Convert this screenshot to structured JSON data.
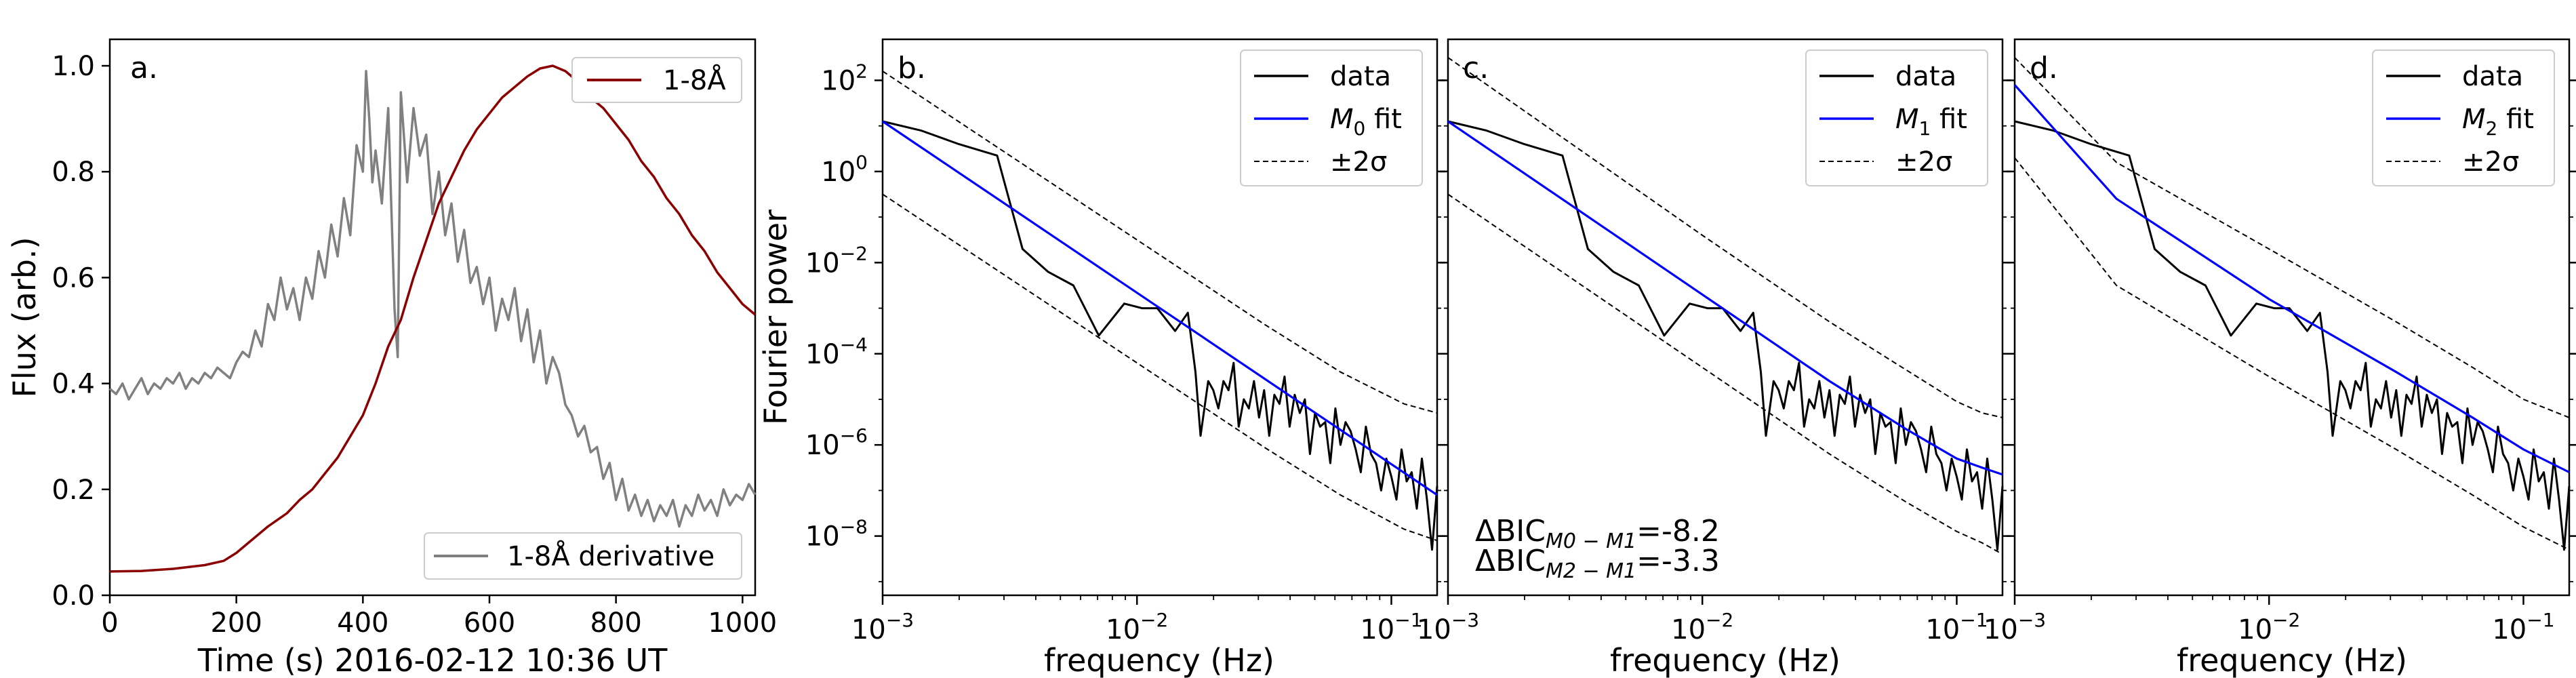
{
  "chart_data": [
    {
      "panel": "a.",
      "type": "line",
      "xlabel": "Time (s) 2016-02-12 10:36 UT",
      "ylabel": "Flux (arb.)",
      "xlim": [
        0,
        1020
      ],
      "ylim": [
        0,
        1.05
      ],
      "xticks": [
        0,
        200,
        400,
        600,
        800,
        1000
      ],
      "yticks": [
        0.0,
        0.2,
        0.4,
        0.6,
        0.8,
        1.0
      ],
      "xtick_labels": [
        "0",
        "200",
        "400",
        "600",
        "800",
        "1000"
      ],
      "ytick_labels": [
        "0.0",
        "0.2",
        "0.4",
        "0.6",
        "0.8",
        "1.0"
      ],
      "series": [
        {
          "name": "1-8Å",
          "color": "#8b0000",
          "legend": "top-right",
          "x": [
            0,
            50,
            100,
            150,
            180,
            200,
            220,
            250,
            280,
            300,
            320,
            340,
            360,
            380,
            400,
            420,
            440,
            460,
            480,
            500,
            520,
            540,
            560,
            580,
            600,
            620,
            640,
            660,
            680,
            700,
            720,
            740,
            760,
            780,
            800,
            820,
            840,
            860,
            880,
            900,
            920,
            940,
            960,
            980,
            1000,
            1020
          ],
          "y": [
            0.045,
            0.046,
            0.05,
            0.057,
            0.065,
            0.08,
            0.1,
            0.13,
            0.155,
            0.18,
            0.2,
            0.23,
            0.26,
            0.3,
            0.34,
            0.4,
            0.47,
            0.52,
            0.6,
            0.67,
            0.74,
            0.79,
            0.84,
            0.88,
            0.91,
            0.94,
            0.96,
            0.98,
            0.995,
            1.0,
            0.99,
            0.97,
            0.94,
            0.92,
            0.89,
            0.86,
            0.82,
            0.79,
            0.75,
            0.72,
            0.68,
            0.65,
            0.61,
            0.58,
            0.55,
            0.53
          ]
        },
        {
          "name": "1-8Å derivative",
          "color": "#808080",
          "legend": "bottom-right",
          "x": [
            0,
            10,
            20,
            30,
            40,
            50,
            60,
            70,
            80,
            90,
            100,
            110,
            120,
            130,
            140,
            150,
            160,
            170,
            180,
            190,
            200,
            210,
            220,
            230,
            240,
            250,
            260,
            270,
            280,
            290,
            300,
            310,
            320,
            330,
            340,
            350,
            360,
            370,
            380,
            390,
            400,
            405,
            410,
            415,
            420,
            430,
            440,
            450,
            455,
            460,
            470,
            480,
            490,
            500,
            510,
            520,
            530,
            540,
            550,
            560,
            570,
            580,
            590,
            600,
            610,
            620,
            630,
            640,
            650,
            660,
            670,
            680,
            690,
            700,
            710,
            720,
            730,
            740,
            750,
            760,
            770,
            780,
            790,
            800,
            810,
            820,
            830,
            840,
            850,
            860,
            870,
            880,
            890,
            900,
            910,
            920,
            930,
            940,
            950,
            960,
            970,
            980,
            990,
            1000,
            1010,
            1020
          ],
          "y": [
            0.39,
            0.38,
            0.4,
            0.37,
            0.39,
            0.41,
            0.38,
            0.4,
            0.39,
            0.41,
            0.4,
            0.42,
            0.39,
            0.41,
            0.4,
            0.42,
            0.41,
            0.43,
            0.42,
            0.41,
            0.44,
            0.46,
            0.45,
            0.5,
            0.47,
            0.55,
            0.52,
            0.6,
            0.54,
            0.58,
            0.52,
            0.6,
            0.56,
            0.65,
            0.6,
            0.7,
            0.64,
            0.75,
            0.68,
            0.85,
            0.8,
            0.99,
            0.9,
            0.78,
            0.84,
            0.74,
            0.92,
            0.54,
            0.45,
            0.95,
            0.78,
            0.92,
            0.83,
            0.87,
            0.72,
            0.8,
            0.68,
            0.74,
            0.63,
            0.69,
            0.59,
            0.62,
            0.55,
            0.6,
            0.5,
            0.56,
            0.52,
            0.58,
            0.48,
            0.54,
            0.44,
            0.5,
            0.4,
            0.45,
            0.42,
            0.36,
            0.34,
            0.3,
            0.32,
            0.27,
            0.28,
            0.22,
            0.25,
            0.18,
            0.22,
            0.16,
            0.19,
            0.15,
            0.18,
            0.14,
            0.17,
            0.15,
            0.18,
            0.13,
            0.17,
            0.15,
            0.19,
            0.16,
            0.18,
            0.15,
            0.2,
            0.17,
            0.19,
            0.18,
            0.21,
            0.19
          ]
        }
      ]
    },
    {
      "panel": "b.",
      "type": "line",
      "xscale": "log",
      "yscale": "log",
      "xlabel": "frequency (Hz)",
      "ylabel": "Fourier power",
      "xlim_log10": [
        -3.0,
        -0.82
      ],
      "ylim_log10": [
        -9.3,
        2.9
      ],
      "xtick_labels": [
        "10^-3",
        "10^-2",
        "10^-1"
      ],
      "ytick_labels": [
        "10^2",
        "10^0",
        "10^-2",
        "10^-4",
        "10^-6",
        "10^-8"
      ],
      "legend": [
        "data",
        "M0 fit",
        "±2σ"
      ],
      "series": [
        {
          "name": "data",
          "color": "#000000"
        },
        {
          "name": "M0 fit",
          "color": "#0000ff",
          "log10_x": [
            -3.0,
            -0.82
          ],
          "log10_y": [
            1.1,
            -7.1
          ]
        },
        {
          "name": "±2σ upper",
          "color": "#000000",
          "style": "dashed",
          "log10_x": [
            -3.0,
            -1.5,
            -1.2,
            -0.95,
            -0.82
          ],
          "log10_y": [
            2.2,
            -3.35,
            -4.4,
            -5.1,
            -5.3
          ]
        },
        {
          "name": "±2σ lower",
          "color": "#000000",
          "style": "dashed",
          "log10_x": [
            -3.0,
            -1.5,
            -1.2,
            -0.95,
            -0.82
          ],
          "log10_y": [
            -0.5,
            -6.05,
            -7.1,
            -7.85,
            -8.1
          ]
        }
      ]
    },
    {
      "panel": "c.",
      "type": "line",
      "xscale": "log",
      "yscale": "log",
      "xlabel": "frequency (Hz)",
      "xlim_log10": [
        -3.0,
        -0.82
      ],
      "ylim_log10": [
        -9.3,
        2.9
      ],
      "xtick_labels": [
        "10^-3",
        "10^-2",
        "10^-1"
      ],
      "legend": [
        "data",
        "M1 fit",
        "±2σ"
      ],
      "annotations": [
        "ΔBIC_{M0−M1}=-8.2",
        "ΔBIC_{M2−M1}=-3.3"
      ],
      "series": [
        {
          "name": "data",
          "color": "#000000"
        },
        {
          "name": "M1 fit",
          "color": "#0000ff",
          "log10_x": [
            -3.0,
            -2.0,
            -1.5,
            -1.2,
            -1.0,
            -0.9,
            -0.82
          ],
          "log10_y": [
            1.1,
            -2.7,
            -4.6,
            -5.65,
            -6.3,
            -6.5,
            -6.65
          ]
        },
        {
          "name": "±2σ upper",
          "color": "#000000",
          "style": "dashed",
          "log10_x": [
            -3.0,
            -2.0,
            -1.5,
            -1.2,
            -1.0,
            -0.9,
            -0.82
          ],
          "log10_y": [
            2.5,
            -1.4,
            -3.3,
            -4.35,
            -5.05,
            -5.3,
            -5.4
          ]
        },
        {
          "name": "±2σ lower",
          "color": "#000000",
          "style": "dashed",
          "log10_x": [
            -3.0,
            -2.0,
            -1.5,
            -1.2,
            -1.0,
            -0.9,
            -0.82
          ],
          "log10_y": [
            -0.5,
            -4.3,
            -6.2,
            -7.25,
            -7.9,
            -8.15,
            -8.4
          ]
        }
      ]
    },
    {
      "panel": "d.",
      "type": "line",
      "xscale": "log",
      "yscale": "log",
      "xlabel": "frequency (Hz)",
      "xlim_log10": [
        -3.0,
        -0.82
      ],
      "ylim_log10": [
        -9.3,
        2.9
      ],
      "xtick_labels": [
        "10^-3",
        "10^-2",
        "10^-1"
      ],
      "legend": [
        "data",
        "M2 fit",
        "±2σ"
      ],
      "series": [
        {
          "name": "data",
          "color": "#000000"
        },
        {
          "name": "M2 fit",
          "color": "#0000ff",
          "log10_x": [
            -3.0,
            -2.6,
            -2.0,
            -1.5,
            -1.2,
            -1.0,
            -0.82
          ],
          "log10_y": [
            1.9,
            -0.6,
            -2.8,
            -4.4,
            -5.4,
            -6.1,
            -6.6
          ]
        },
        {
          "name": "±2σ upper",
          "color": "#000000",
          "style": "dashed",
          "log10_x": [
            -3.0,
            -2.6,
            -2.0,
            -1.5,
            -1.2,
            -1.0,
            -0.82
          ],
          "log10_y": [
            2.5,
            0.2,
            -1.7,
            -3.3,
            -4.3,
            -5.0,
            -5.4
          ]
        },
        {
          "name": "±2σ lower",
          "color": "#000000",
          "style": "dashed",
          "log10_x": [
            -3.0,
            -2.6,
            -2.0,
            -1.5,
            -1.2,
            -1.0,
            -0.82
          ],
          "log10_y": [
            0.3,
            -2.5,
            -4.5,
            -6.1,
            -7.1,
            -7.8,
            -8.3
          ]
        }
      ]
    }
  ],
  "data_spectrum": {
    "log10_x": [
      -3.0,
      -2.85,
      -2.7,
      -2.55,
      -2.45,
      -2.35,
      -2.25,
      -2.15,
      -2.05,
      -1.98,
      -1.92,
      -1.85,
      -1.8,
      -1.77,
      -1.75,
      -1.72,
      -1.7,
      -1.68,
      -1.66,
      -1.64,
      -1.62,
      -1.6,
      -1.58,
      -1.56,
      -1.54,
      -1.52,
      -1.5,
      -1.48,
      -1.46,
      -1.44,
      -1.42,
      -1.4,
      -1.38,
      -1.36,
      -1.34,
      -1.32,
      -1.3,
      -1.28,
      -1.26,
      -1.24,
      -1.22,
      -1.2,
      -1.18,
      -1.16,
      -1.14,
      -1.12,
      -1.1,
      -1.08,
      -1.06,
      -1.04,
      -1.02,
      -1.0,
      -0.98,
      -0.96,
      -0.94,
      -0.92,
      -0.9,
      -0.88,
      -0.86,
      -0.84,
      -0.82
    ],
    "log10_y": [
      1.1,
      0.9,
      0.6,
      0.35,
      -1.7,
      -2.2,
      -2.5,
      -3.6,
      -2.9,
      -3.0,
      -3.0,
      -3.5,
      -3.1,
      -4.4,
      -5.8,
      -4.6,
      -4.8,
      -5.2,
      -4.6,
      -4.8,
      -4.2,
      -5.6,
      -5.0,
      -5.2,
      -4.6,
      -5.4,
      -4.8,
      -5.8,
      -4.9,
      -5.1,
      -4.5,
      -5.6,
      -4.9,
      -5.3,
      -5.0,
      -6.2,
      -5.3,
      -5.6,
      -5.5,
      -6.4,
      -5.2,
      -6.0,
      -5.5,
      -5.7,
      -6.1,
      -6.6,
      -5.6,
      -6.2,
      -6.4,
      -7.0,
      -6.3,
      -6.7,
      -7.2,
      -6.1,
      -6.8,
      -6.6,
      -7.4,
      -6.3,
      -7.2,
      -8.3,
      -6.9
    ]
  },
  "panel_labels": [
    "a.",
    "b.",
    "c.",
    "d."
  ],
  "legend_text": {
    "a_flux": "1-8Å",
    "a_deriv": "1-8Å derivative",
    "data": "data",
    "fit_b": "M",
    "fit_b_sub": "0",
    "fit_c": "M",
    "fit_c_sub": "1",
    "fit_d": "M",
    "fit_d_sub": "2",
    "fit_suffix": " fit",
    "sigma": "±2σ"
  },
  "annotation": {
    "bic1_prefix": "ΔBIC",
    "bic1_sub": "M0 − M1",
    "bic1_value": "=-8.2",
    "bic2_prefix": "ΔBIC",
    "bic2_sub": "M2 − M1",
    "bic2_value": "=-3.3"
  },
  "log_tick_labels": {
    "x": [
      {
        "base": "10",
        "exp": "−3"
      },
      {
        "base": "10",
        "exp": "−2"
      },
      {
        "base": "10",
        "exp": "−1"
      }
    ],
    "y": [
      {
        "base": "10",
        "exp": "2"
      },
      {
        "base": "10",
        "exp": "0"
      },
      {
        "base": "10",
        "exp": "−2"
      },
      {
        "base": "10",
        "exp": "−4"
      },
      {
        "base": "10",
        "exp": "−6"
      },
      {
        "base": "10",
        "exp": "−8"
      }
    ]
  },
  "axis_labels": {
    "a_x": "Time (s) 2016-02-12 10:36 UT",
    "a_y": "Flux (arb.)",
    "freq": "frequency (Hz)",
    "power": "Fourier power"
  }
}
